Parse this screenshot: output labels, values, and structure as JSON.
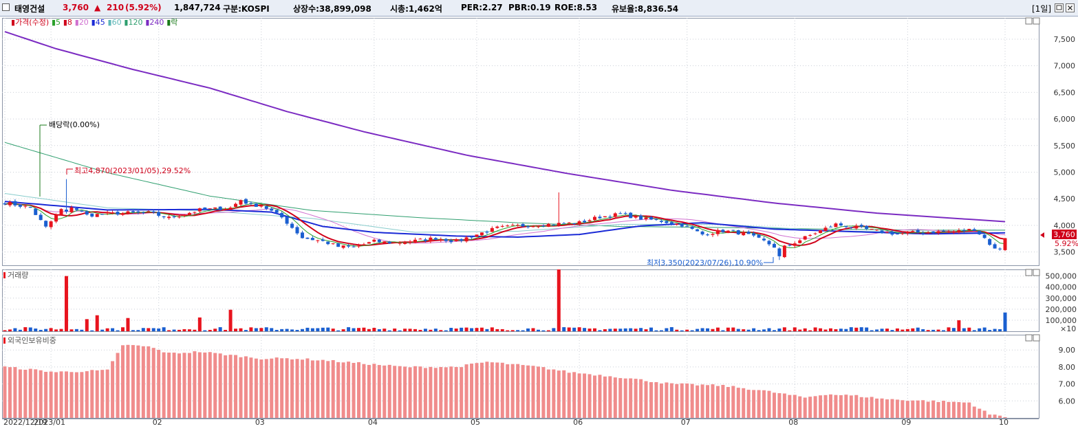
{
  "header": {
    "name": "태영건설",
    "price": "3,760",
    "change_arrow": "▲",
    "change": "210",
    "change_pct": "(5.92%)",
    "volume": "1,847,724",
    "market": "구분:KOSPI",
    "listed_shares": "상장수:38,899,098",
    "market_cap": "시총:1,462억",
    "per": "PER:2.27",
    "pbr": "PBR:0.19",
    "roe": "ROE:8.53",
    "reserve_ratio": "유보율:8,836.54",
    "period": "[1일]"
  },
  "price_panel": {
    "legend": [
      {
        "label": "가격(수정)",
        "color": "#d0021b"
      },
      {
        "label": "5",
        "color": "#2aa02a"
      },
      {
        "label": "8",
        "color": "#d0021b"
      },
      {
        "label": "20",
        "color": "#d070d0"
      },
      {
        "label": "45",
        "color": "#1a2ad6"
      },
      {
        "label": "60",
        "color": "#5fb8b8"
      },
      {
        "label": "120",
        "color": "#2e9e6e"
      },
      {
        "label": "240",
        "color": "#7b2bc2"
      },
      {
        "label": "락",
        "color": "#1a7a1a"
      }
    ],
    "annotations": {
      "dividend": "배당락(0.00%)",
      "high": "최고4,870(2023/01/05),29.52%",
      "low": "최저3,350(2023/07/26),10.90%"
    },
    "current_price_label": "3,760",
    "current_pct_label": "5.92%"
  },
  "volume_panel": {
    "legend": "거래량",
    "unit": "×10"
  },
  "foreign_panel": {
    "legend": "외국인보유비중"
  },
  "colors": {
    "up": "#e8141e",
    "down": "#1a5fd0",
    "foreign_bar": "#f08c8c",
    "grid": "#c9ced6"
  },
  "chart_data": {
    "type": "candlestick",
    "price_axis": {
      "ticks": [
        3500,
        4000,
        4500,
        5000,
        5500,
        6000,
        6500,
        7000,
        7500
      ],
      "tick_labels": [
        "3,500",
        "4,000",
        "4,500",
        "5,000",
        "5,500",
        "6,000",
        "6,500",
        "7,000",
        "7,500"
      ],
      "range": [
        3250,
        7900
      ]
    },
    "volume_axis": {
      "ticks": [
        100000,
        200000,
        300000,
        400000,
        500000
      ],
      "tick_labels": [
        "100,000",
        "200,000",
        "300,000",
        "400,000",
        "500,000"
      ],
      "range": [
        0,
        560000
      ]
    },
    "foreign_axis": {
      "ticks": [
        6,
        7,
        8,
        9
      ],
      "tick_labels": [
        "6.00",
        "7.00",
        "8.00",
        "9.00"
      ],
      "range": [
        5.0,
        9.9
      ]
    },
    "x_labels": [
      {
        "label": "2022/12/19",
        "index": 0
      },
      {
        "label": "2023/01",
        "index": 9
      },
      {
        "label": "02",
        "index": 30
      },
      {
        "label": "03",
        "index": 50
      },
      {
        "label": "04",
        "index": 72
      },
      {
        "label": "05",
        "index": 92
      },
      {
        "label": "06",
        "index": 112
      },
      {
        "label": "07",
        "index": 133
      },
      {
        "label": "08",
        "index": 154
      },
      {
        "label": "09",
        "index": 176
      },
      {
        "label": "10",
        "index": 195
      }
    ],
    "price_anchors": [
      [
        0,
        4430
      ],
      [
        5,
        4330
      ],
      [
        8,
        3960
      ],
      [
        12,
        4410
      ],
      [
        16,
        4190
      ],
      [
        22,
        4230
      ],
      [
        28,
        4240
      ],
      [
        32,
        4140
      ],
      [
        38,
        4290
      ],
      [
        44,
        4330
      ],
      [
        46,
        4480
      ],
      [
        48,
        4380
      ],
      [
        50,
        4380
      ],
      [
        54,
        4150
      ],
      [
        58,
        3770
      ],
      [
        62,
        3700
      ],
      [
        65,
        3600
      ],
      [
        68,
        3590
      ],
      [
        72,
        3700
      ],
      [
        76,
        3670
      ],
      [
        80,
        3710
      ],
      [
        84,
        3760
      ],
      [
        88,
        3700
      ],
      [
        92,
        3830
      ],
      [
        96,
        3950
      ],
      [
        100,
        3990
      ],
      [
        104,
        4010
      ],
      [
        108,
        4030
      ],
      [
        112,
        4050
      ],
      [
        116,
        4160
      ],
      [
        120,
        4210
      ],
      [
        124,
        4130
      ],
      [
        128,
        4080
      ],
      [
        132,
        4010
      ],
      [
        136,
        3830
      ],
      [
        140,
        3900
      ],
      [
        144,
        3850
      ],
      [
        148,
        3700
      ],
      [
        151,
        3550
      ],
      [
        154,
        3680
      ],
      [
        158,
        3860
      ],
      [
        162,
        4020
      ],
      [
        166,
        3960
      ],
      [
        170,
        3890
      ],
      [
        174,
        3840
      ],
      [
        178,
        3870
      ],
      [
        182,
        3880
      ],
      [
        186,
        3890
      ],
      [
        189,
        3930
      ],
      [
        191,
        3760
      ],
      [
        193,
        3550
      ],
      [
        195,
        3760
      ]
    ],
    "ma240_anchors": [
      [
        0,
        7640
      ],
      [
        10,
        7320
      ],
      [
        25,
        6930
      ],
      [
        40,
        6580
      ],
      [
        55,
        6140
      ],
      [
        70,
        5760
      ],
      [
        90,
        5320
      ],
      [
        110,
        4970
      ],
      [
        130,
        4660
      ],
      [
        150,
        4420
      ],
      [
        170,
        4230
      ],
      [
        195,
        4070
      ]
    ],
    "ma120_anchors": [
      [
        0,
        5560
      ],
      [
        20,
        4990
      ],
      [
        40,
        4550
      ],
      [
        60,
        4280
      ],
      [
        80,
        4150
      ],
      [
        100,
        4050
      ],
      [
        120,
        3980
      ],
      [
        140,
        3960
      ],
      [
        160,
        3930
      ],
      [
        180,
        3910
      ],
      [
        195,
        3910
      ]
    ],
    "ma60_anchors": [
      [
        0,
        4600
      ],
      [
        20,
        4330
      ],
      [
        40,
        4270
      ],
      [
        60,
        4130
      ],
      [
        80,
        3870
      ],
      [
        100,
        3890
      ],
      [
        120,
        4020
      ],
      [
        140,
        4020
      ],
      [
        160,
        3900
      ],
      [
        180,
        3870
      ],
      [
        195,
        3860
      ]
    ],
    "ma45_anchors": [
      [
        0,
        4450
      ],
      [
        20,
        4290
      ],
      [
        40,
        4300
      ],
      [
        52,
        4250
      ],
      [
        62,
        3980
      ],
      [
        72,
        3870
      ],
      [
        88,
        3800
      ],
      [
        100,
        3780
      ],
      [
        112,
        3830
      ],
      [
        124,
        3990
      ],
      [
        136,
        4050
      ],
      [
        150,
        3930
      ],
      [
        166,
        3880
      ],
      [
        180,
        3840
      ],
      [
        195,
        3860
      ]
    ],
    "foreign_anchors": [
      [
        0,
        8.0
      ],
      [
        10,
        7.7
      ],
      [
        20,
        7.8
      ],
      [
        23,
        9.3
      ],
      [
        28,
        9.2
      ],
      [
        32,
        8.8
      ],
      [
        38,
        8.9
      ],
      [
        44,
        8.7
      ],
      [
        50,
        8.5
      ],
      [
        56,
        8.5
      ],
      [
        62,
        8.4
      ],
      [
        70,
        8.2
      ],
      [
        78,
        8.0
      ],
      [
        88,
        8.0
      ],
      [
        94,
        8.3
      ],
      [
        104,
        8.0
      ],
      [
        110,
        7.7
      ],
      [
        120,
        7.4
      ],
      [
        130,
        7.0
      ],
      [
        140,
        6.9
      ],
      [
        148,
        6.6
      ],
      [
        156,
        6.2
      ],
      [
        160,
        6.4
      ],
      [
        166,
        6.3
      ],
      [
        172,
        6.1
      ],
      [
        180,
        6.0
      ],
      [
        188,
        5.9
      ],
      [
        192,
        5.2
      ],
      [
        195,
        5.1
      ]
    ],
    "volume_spikes": [
      [
        12,
        500000
      ],
      [
        16,
        110000
      ],
      [
        18,
        145000
      ],
      [
        24,
        120000
      ],
      [
        38,
        125000
      ],
      [
        44,
        195000
      ],
      [
        108,
        560000
      ],
      [
        186,
        100000
      ],
      [
        195,
        170000
      ]
    ],
    "n_bars": 196,
    "high": {
      "value": 4870,
      "date": "2023/01/05"
    },
    "low": {
      "value": 3350,
      "date": "2023/07/26"
    },
    "last": {
      "value": 3760,
      "change": 210,
      "change_pct": 5.92
    }
  }
}
